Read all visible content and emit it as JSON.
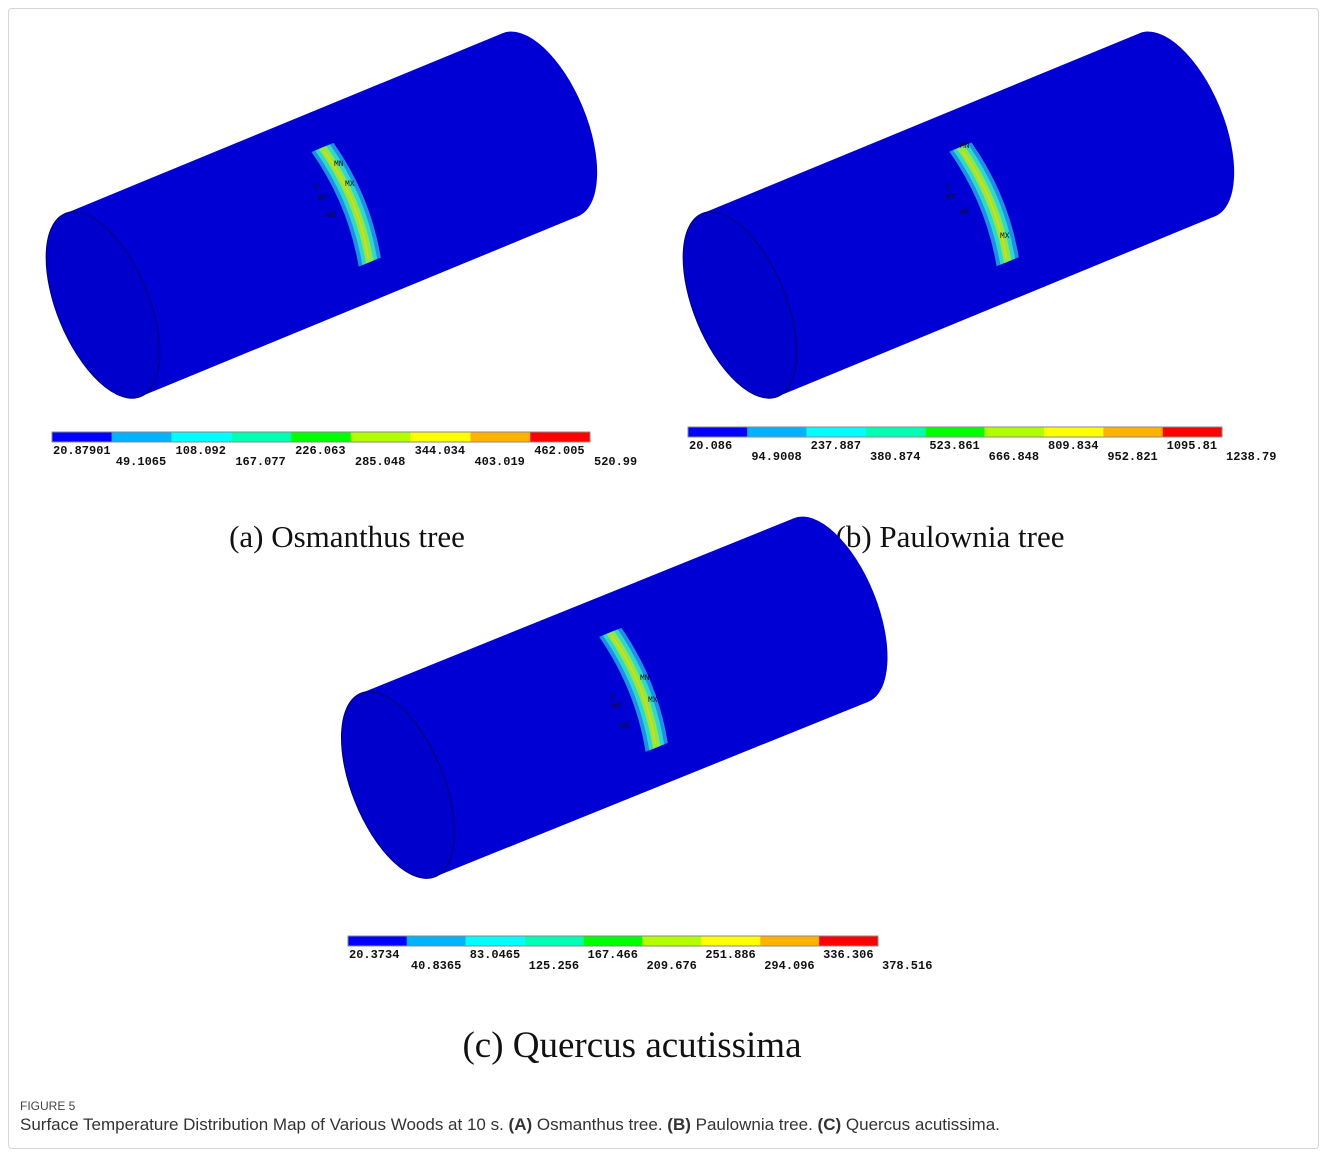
{
  "figure": {
    "panels": [
      {
        "title": "(a) Osmanthus tree",
        "legend": [
          "20.87901",
          "49.1065",
          "108.092",
          "167.077",
          "226.063",
          "285.048",
          "344.034",
          "403.019",
          "462.005",
          "520.99"
        ],
        "markers": [
          "MN",
          "MX",
          "Y",
          "WY",
          "WX"
        ]
      },
      {
        "title": "(b) Paulownia tree",
        "legend": [
          "20.086",
          "94.9008",
          "237.887",
          "380.874",
          "523.861",
          "666.848",
          "809.834",
          "952.821",
          "1095.81",
          "1238.79"
        ],
        "markers": [
          "MN",
          "MX",
          "Y",
          "WY",
          "WX"
        ]
      },
      {
        "title": "(c) Quercus acutissima",
        "legend": [
          "20.3734",
          "40.8365",
          "83.0465",
          "125.256",
          "167.466",
          "209.676",
          "251.886",
          "294.096",
          "336.306",
          "378.516"
        ],
        "markers": [
          "MN",
          "MX",
          "Y",
          "WY",
          "WX"
        ]
      }
    ],
    "caption": {
      "label": "FIGURE 5",
      "lead": "Surface Temperature Distribution Map of Various Woods at 10 s.",
      "items": [
        {
          "key": "(A)",
          "text": "Osmanthus tree."
        },
        {
          "key": "(B)",
          "text": "Paulownia tree."
        },
        {
          "key": "(C)",
          "text": "Quercus acutissima."
        }
      ]
    }
  }
}
